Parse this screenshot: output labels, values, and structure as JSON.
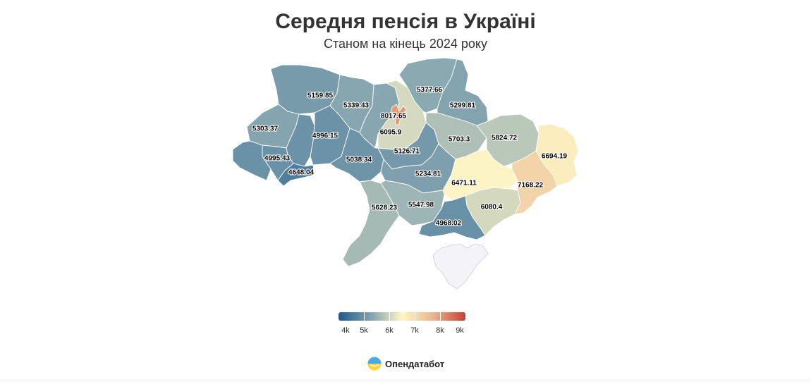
{
  "title": "Середня пенсія в Україні",
  "subtitle": "Станом на кінець 2024 року",
  "brand": {
    "name": "Опендатабот",
    "icon": "opendatabot-logo-icon"
  },
  "colors": {
    "scale": [
      "#1e5a8a",
      "#7ea0ae",
      "#fff6c6",
      "#e8b48e",
      "#c83d35"
    ],
    "crimea": "#f4f4f8"
  },
  "chart_data": {
    "type": "choropleth",
    "title": "Середня пенсія в Україні",
    "subtitle": "Станом на кінець 2024 року",
    "scale": {
      "min": 4000,
      "max": 9000,
      "ticks": [
        "4k",
        "5k",
        "6k",
        "7k",
        "8k",
        "9k"
      ],
      "tick_values": [
        4000,
        5000,
        6000,
        7000,
        8000,
        9000
      ]
    },
    "regions": [
      {
        "id": "volyn",
        "label": "5159.85",
        "value": 5159.85
      },
      {
        "id": "rivne",
        "label": "5339.43",
        "value": 5339.43
      },
      {
        "id": "zhytomyr",
        "label": "5339.43",
        "value": 5339.43
      },
      {
        "id": "kyiv-oblast",
        "label": "6095.9",
        "value": 6095.9
      },
      {
        "id": "kyiv-city",
        "label": "8017.65",
        "value": 8017.65
      },
      {
        "id": "chernihiv",
        "label": "5377.66",
        "value": 5377.66
      },
      {
        "id": "sumy",
        "label": "5299.81",
        "value": 5299.81
      },
      {
        "id": "lviv",
        "label": "5303.37",
        "value": 5303.37
      },
      {
        "id": "ternopil",
        "label": "4996.15",
        "value": 4996.15
      },
      {
        "id": "khmelnytskyi",
        "label": "4996.15",
        "value": 4996.15
      },
      {
        "id": "zakarpattia",
        "label": "4995.43",
        "value": 4995.43
      },
      {
        "id": "ivano-frankivsk",
        "label": "4995.43",
        "value": 4995.43
      },
      {
        "id": "chernivtsi",
        "label": "4648.04",
        "value": 4648.04
      },
      {
        "id": "vinnytsia",
        "label": "5038.34",
        "value": 5038.34
      },
      {
        "id": "cherkasy",
        "label": "5126.71",
        "value": 5126.71
      },
      {
        "id": "poltava",
        "label": "5703.3",
        "value": 5703.3
      },
      {
        "id": "kharkiv",
        "label": "5824.72",
        "value": 5824.72
      },
      {
        "id": "kirovohrad",
        "label": "5234.81",
        "value": 5234.81
      },
      {
        "id": "dnipropetrovsk",
        "label": "6471.11",
        "value": 6471.11
      },
      {
        "id": "luhansk",
        "label": "6694.19",
        "value": 6694.19
      },
      {
        "id": "donetsk",
        "label": "7168.22",
        "value": 7168.22
      },
      {
        "id": "odesa",
        "label": "5628.23",
        "value": 5628.23
      },
      {
        "id": "mykolaiv",
        "label": "5547.98",
        "value": 5547.98
      },
      {
        "id": "zaporizhzhia",
        "label": "6080.4",
        "value": 6080.4
      },
      {
        "id": "kherson",
        "label": "4968.02",
        "value": 4968.02
      }
    ],
    "visible_labels": [
      "5159.85",
      "5339.43",
      "5377.66",
      "5299.81",
      "8017.65",
      "6095.9",
      "5303.37",
      "4996.15",
      "4995.43",
      "4648.04",
      "5038.34",
      "5126.71",
      "5703.3",
      "5824.72",
      "5234.81",
      "6471.11",
      "6694.19",
      "7168.22",
      "5628.23",
      "5547.98",
      "6080.4",
      "4968.02"
    ],
    "no_data": [
      "crimea"
    ]
  }
}
